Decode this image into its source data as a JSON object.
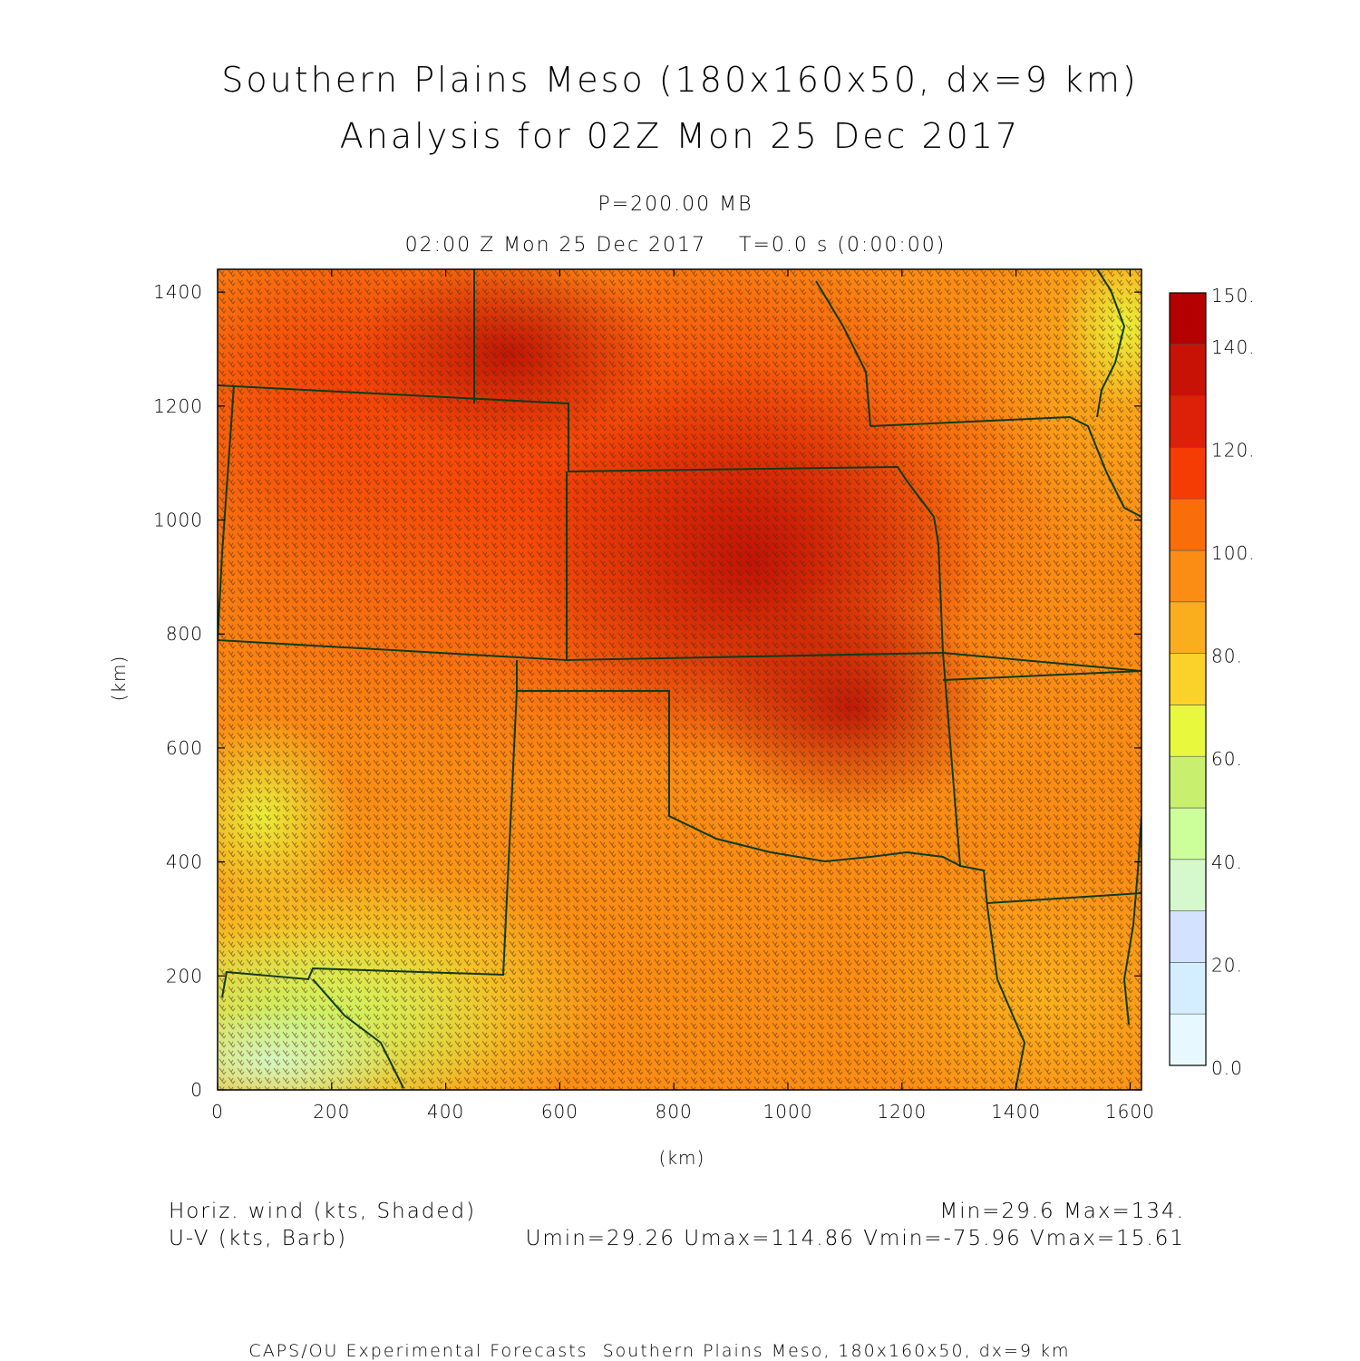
{
  "title": {
    "line1": "Southern Plains Meso (180x160x50, dx=9 km)",
    "line2": "Analysis for 02Z Mon 25 Dec 2017"
  },
  "subtitle": {
    "level": "P=200.00 MB",
    "time": "02:00 Z Mon 25 Dec 2017    T=0.0 s (0:00:00)"
  },
  "axes": {
    "xlabel": "(km)",
    "ylabel": "(km)",
    "x_ticks": [
      "0",
      "200",
      "400",
      "600",
      "800",
      "1000",
      "1200",
      "1400",
      "1600"
    ],
    "y_ticks": [
      "0",
      "200",
      "400",
      "600",
      "800",
      "1000",
      "1200",
      "1400"
    ],
    "x_range_km": [
      0,
      1620
    ],
    "y_range_km": [
      0,
      1440
    ]
  },
  "colorbar": {
    "labels": [
      "0.0",
      "20.",
      "40.",
      "60.",
      "80.",
      "100.",
      "120.",
      "140.",
      "150."
    ],
    "colors": [
      "#e8f8ff",
      "#d5eeff",
      "#d2e2ff",
      "#d5f8cc",
      "#ccff99",
      "#c8f06e",
      "#e8f83c",
      "#fad22a",
      "#faae1e",
      "#fb8c14",
      "#fa6e0a",
      "#f53c05",
      "#dd2008",
      "#c81205",
      "#b40000"
    ]
  },
  "annotations": {
    "field_label": "Horiz. wind (kts, Shaded)",
    "barb_label": "U-V (kts, Barb)",
    "minmax": "Min=29.6 Max=134.",
    "uv_stats": "Umin=29.26 Umax=114.86 Vmin=-75.96 Vmax=15.61"
  },
  "footer": "CAPS/OU Experimental Forecasts  Southern Plains Meso, 180x160x50, dx=9 km"
}
